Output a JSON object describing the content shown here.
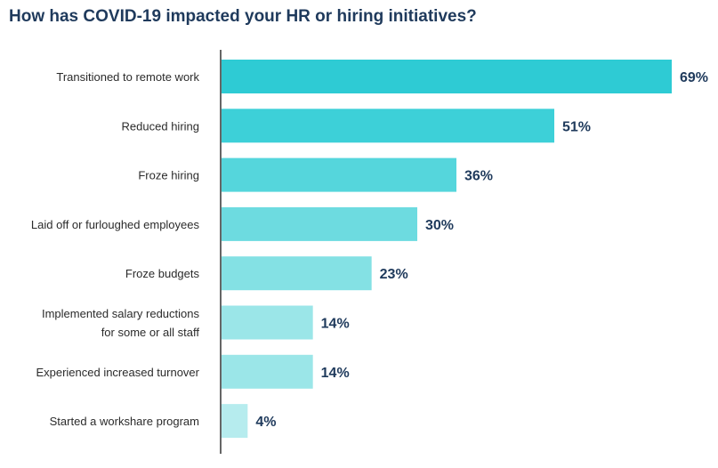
{
  "chart_data": {
    "type": "bar",
    "orientation": "horizontal",
    "title": "How has COVID-19 impacted your HR or hiring initiatives?",
    "categories": [
      [
        "Transitioned to remote work"
      ],
      [
        "Reduced hiring"
      ],
      [
        "Froze hiring"
      ],
      [
        "Laid off or furloughed employees"
      ],
      [
        "Froze budgets"
      ],
      [
        "Implemented salary reductions",
        "for some or all staff"
      ],
      [
        "Experienced increased turnover"
      ],
      [
        "Started a workshare program"
      ]
    ],
    "values": [
      69,
      51,
      36,
      30,
      23,
      14,
      14,
      4
    ],
    "value_labels": [
      "69%",
      "51%",
      "36%",
      "30%",
      "23%",
      "14%",
      "14%",
      "4%"
    ],
    "colors": [
      "#2ecbd4",
      "#3dd0d8",
      "#55d6dc",
      "#6ddbe0",
      "#84e1e4",
      "#9be6e8",
      "#9be6e8",
      "#b6ecee"
    ],
    "xlim": [
      0,
      69
    ],
    "grid": false,
    "legend": "none"
  }
}
